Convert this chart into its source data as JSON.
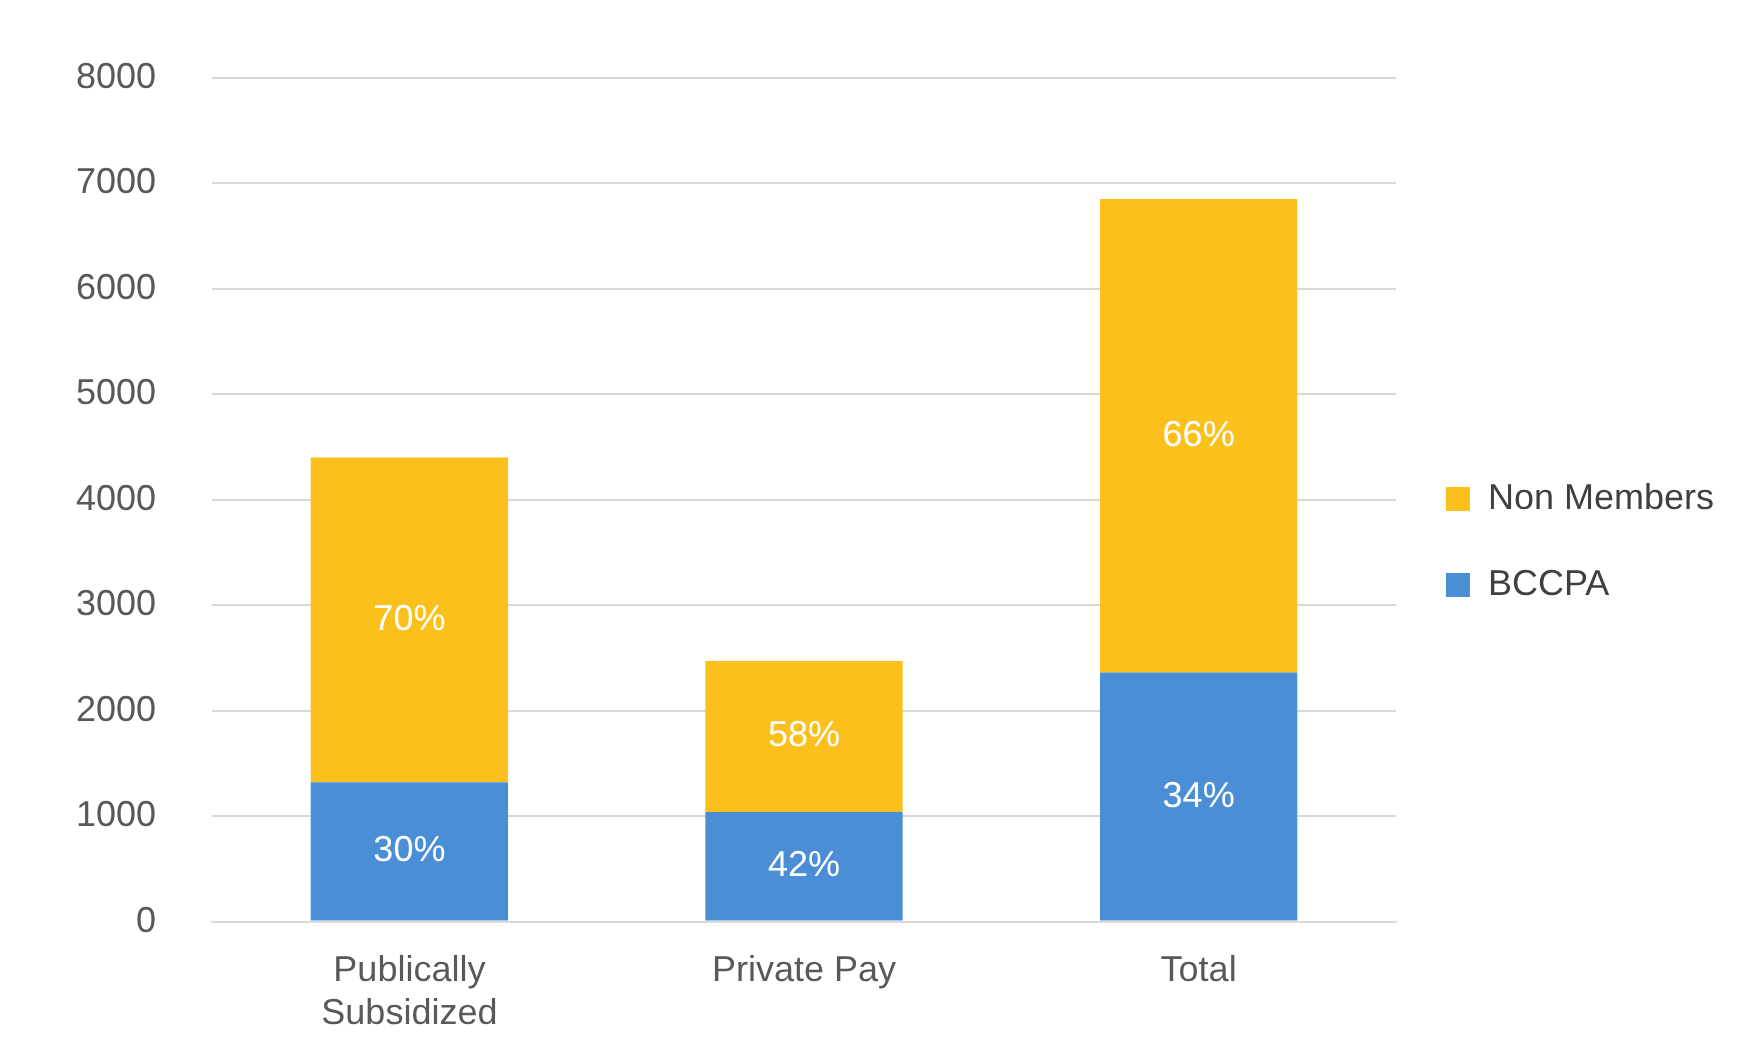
{
  "chart_data": {
    "type": "bar",
    "stacked": true,
    "categories": [
      "Publically Subsidized",
      "Private Pay",
      "Total"
    ],
    "series": [
      {
        "name": "BCCPA",
        "color": "#4a8fd6",
        "values": [
          1320,
          1040,
          2360
        ]
      },
      {
        "name": "Non Members",
        "color": "#fcc01c",
        "values": [
          3080,
          1430,
          4490
        ]
      }
    ],
    "annotations": [
      "30%",
      "42%",
      "34%",
      "70%",
      "58%",
      "66%"
    ],
    "ylim": [
      0,
      8000
    ],
    "yticks": [
      0,
      1000,
      2000,
      3000,
      4000,
      5000,
      6000,
      7000,
      8000
    ],
    "grid": "y",
    "legend": "right"
  }
}
